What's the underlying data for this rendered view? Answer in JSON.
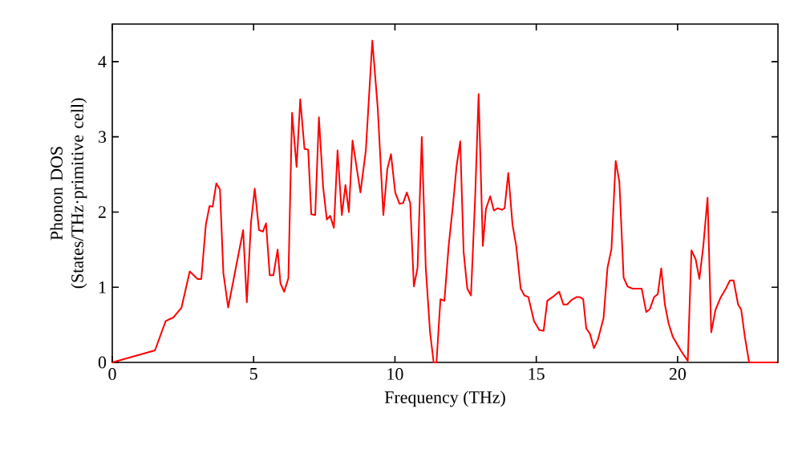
{
  "chart_data": {
    "type": "line",
    "xlabel": "Frequency (THz)",
    "ylabel": "Phonon DOS (States/THz·primitive cell)",
    "xlim": [
      0,
      23.55
    ],
    "ylim": [
      0,
      4.5
    ],
    "xticks": [
      0,
      5,
      10,
      15,
      20
    ],
    "yticks": [
      0,
      1,
      2,
      3,
      4
    ],
    "grid": false,
    "marker": "none",
    "line_style": "solid",
    "series": [
      {
        "color": "#ff0000",
        "x": [
          0,
          1.51,
          1.89,
          2.17,
          2.45,
          2.74,
          3.02,
          3.15,
          3.31,
          3.44,
          3.55,
          3.68,
          3.81,
          3.93,
          4.1,
          4.63,
          4.76,
          4.91,
          5.04,
          5.19,
          5.33,
          5.44,
          5.57,
          5.7,
          5.85,
          5.95,
          6.08,
          6.23,
          6.36,
          6.52,
          6.65,
          6.8,
          6.93,
          7.04,
          7.18,
          7.31,
          7.46,
          7.59,
          7.71,
          7.84,
          7.97,
          8.12,
          8.25,
          8.37,
          8.5,
          8.78,
          8.97,
          9.2,
          9.39,
          9.59,
          9.73,
          9.86,
          10.01,
          10.16,
          10.29,
          10.42,
          10.54,
          10.67,
          10.8,
          10.95,
          11.09,
          11.24,
          11.37,
          11.47,
          11.61,
          11.75,
          11.9,
          12.05,
          12.18,
          12.31,
          12.43,
          12.56,
          12.69,
          12.84,
          12.96,
          13.11,
          13.22,
          13.37,
          13.5,
          13.63,
          13.79,
          13.88,
          14.01,
          14.16,
          14.29,
          14.45,
          14.58,
          14.72,
          14.92,
          15.11,
          15.26,
          15.39,
          15.58,
          15.81,
          15.96,
          16.09,
          16.25,
          16.43,
          16.53,
          16.66,
          16.77,
          16.9,
          17.04,
          17.18,
          17.38,
          17.52,
          17.66,
          17.81,
          17.94,
          18.09,
          18.23,
          18.41,
          18.73,
          18.89,
          19.02,
          19.17,
          19.3,
          19.42,
          19.55,
          19.68,
          19.83,
          20.11,
          20.36,
          20.49,
          20.64,
          20.77,
          20.91,
          21.06,
          21.19,
          21.34,
          21.53,
          21.72,
          21.85,
          21.98,
          22.14,
          22.25,
          22.38,
          22.53,
          23.51
        ],
        "values": [
          0,
          0.16,
          0.55,
          0.6,
          0.73,
          1.21,
          1.11,
          1.11,
          1.83,
          2.08,
          2.07,
          2.38,
          2.3,
          1.19,
          0.73,
          1.76,
          0.8,
          1.87,
          2.31,
          1.76,
          1.74,
          1.85,
          1.16,
          1.16,
          1.5,
          1.05,
          0.94,
          1.12,
          3.32,
          2.6,
          3.5,
          2.84,
          2.83,
          1.97,
          1.96,
          3.26,
          2.33,
          1.9,
          1.95,
          1.79,
          2.82,
          1.96,
          2.36,
          2.0,
          2.95,
          2.26,
          2.82,
          4.28,
          3.39,
          1.96,
          2.57,
          2.77,
          2.26,
          2.11,
          2.12,
          2.26,
          2.12,
          1.01,
          1.26,
          3.0,
          1.26,
          0.41,
          0,
          0,
          0.84,
          0.82,
          1.55,
          2.08,
          2.61,
          2.94,
          1.47,
          0.98,
          0.89,
          2.22,
          3.57,
          1.55,
          2.04,
          2.21,
          2.02,
          2.05,
          2.03,
          2.05,
          2.52,
          1.83,
          1.55,
          0.98,
          0.89,
          0.87,
          0.55,
          0.43,
          0.42,
          0.82,
          0.87,
          0.94,
          0.77,
          0.77,
          0.83,
          0.87,
          0.87,
          0.84,
          0.45,
          0.38,
          0.19,
          0.3,
          0.59,
          1.26,
          1.51,
          2.68,
          2.4,
          1.13,
          1.01,
          0.98,
          0.98,
          0.67,
          0.71,
          0.87,
          0.91,
          1.25,
          0.77,
          0.52,
          0.34,
          0.16,
          0.02,
          1.49,
          1.37,
          1.11,
          1.55,
          2.19,
          0.4,
          0.7,
          0.87,
          0.99,
          1.09,
          1.09,
          0.77,
          0.7,
          0.34,
          0,
          0
        ]
      }
    ]
  }
}
